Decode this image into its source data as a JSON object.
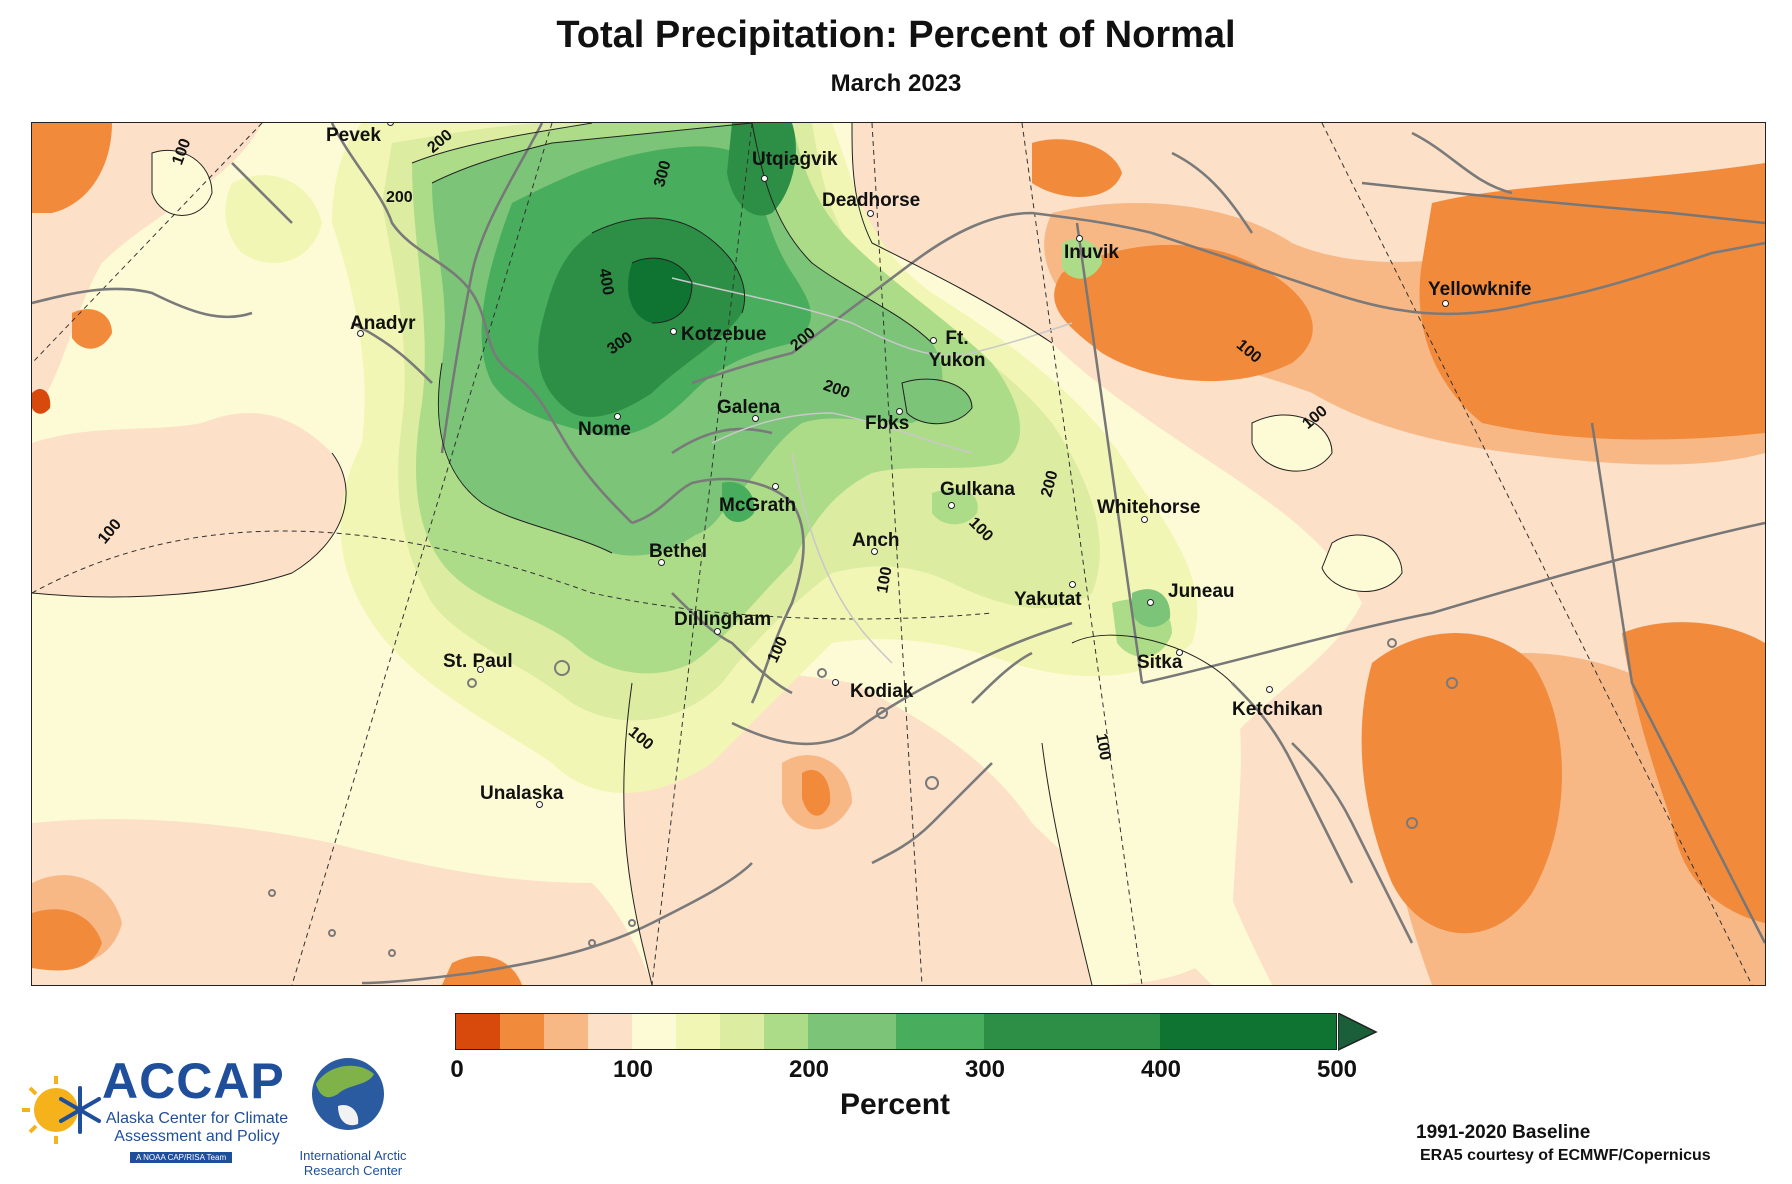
{
  "title": "Total Precipitation: Percent of Normal",
  "subtitle": "March 2023",
  "cities": [
    {
      "id": "pevek",
      "name": "Pevek"
    },
    {
      "id": "utqiagvik",
      "name": "Utqiaġvik"
    },
    {
      "id": "deadhorse",
      "name": "Deadhorse"
    },
    {
      "id": "inuvik",
      "name": "Inuvik"
    },
    {
      "id": "yellowknife",
      "name": "Yellowknife"
    },
    {
      "id": "anadyr",
      "name": "Anadyr"
    },
    {
      "id": "kotzebue",
      "name": "Kotzebue"
    },
    {
      "id": "ftyukon",
      "name": "Ft. Yukon"
    },
    {
      "id": "galena",
      "name": "Galena"
    },
    {
      "id": "fbks",
      "name": "Fbks"
    },
    {
      "id": "nome",
      "name": "Nome"
    },
    {
      "id": "gulkana",
      "name": "Gulkana"
    },
    {
      "id": "mcgrath",
      "name": "McGrath"
    },
    {
      "id": "whitehorse",
      "name": "Whitehorse"
    },
    {
      "id": "anch",
      "name": "Anch"
    },
    {
      "id": "bethel",
      "name": "Bethel"
    },
    {
      "id": "yakutat",
      "name": "Yakutat"
    },
    {
      "id": "juneau",
      "name": "Juneau"
    },
    {
      "id": "dillingham",
      "name": "Dillingham"
    },
    {
      "id": "stpaul",
      "name": "St. Paul"
    },
    {
      "id": "sitka",
      "name": "Sitka"
    },
    {
      "id": "kodiak",
      "name": "Kodiak"
    },
    {
      "id": "ketchikan",
      "name": "Ketchikan"
    },
    {
      "id": "unalaska",
      "name": "Unalaska"
    }
  ],
  "contour_labels": [
    "100",
    "200",
    "200",
    "300",
    "400",
    "300",
    "200",
    "200",
    "200",
    "100",
    "100",
    "100",
    "100",
    "100",
    "100",
    "100",
    "100"
  ],
  "colorbar": {
    "label": "Percent",
    "ticks": [
      "0",
      "100",
      "200",
      "300",
      "400",
      "500"
    ],
    "bins": [
      {
        "from": 0,
        "to": 25,
        "color": "#d84a0c"
      },
      {
        "from": 25,
        "to": 50,
        "color": "#f28a3c"
      },
      {
        "from": 50,
        "to": 75,
        "color": "#f8b886"
      },
      {
        "from": 75,
        "to": 100,
        "color": "#fce0c8"
      },
      {
        "from": 100,
        "to": 125,
        "color": "#fdfbd5"
      },
      {
        "from": 125,
        "to": 150,
        "color": "#f2f6b4"
      },
      {
        "from": 150,
        "to": 175,
        "color": "#dcecA0"
      },
      {
        "from": 175,
        "to": 200,
        "color": "#addc88"
      },
      {
        "from": 200,
        "to": 250,
        "color": "#7bc478"
      },
      {
        "from": 250,
        "to": 300,
        "color": "#48ad5c"
      },
      {
        "from": 300,
        "to": 400,
        "color": "#2d8f45"
      },
      {
        "from": 400,
        "to": 500,
        "color": "#0f7432"
      }
    ],
    "over_color": "#1a5e3a"
  },
  "baseline": "1991-2020 Baseline",
  "credit": "ERA5 courtesy of ECMWF/Copernicus",
  "logos": {
    "accap_name": "ACCAP",
    "accap_full": "Alaska Center for Climate Assessment and Policy",
    "accap_tag": "A NOAA CAP/RISA Team",
    "iarc_name": "International Arctic Research Center"
  }
}
